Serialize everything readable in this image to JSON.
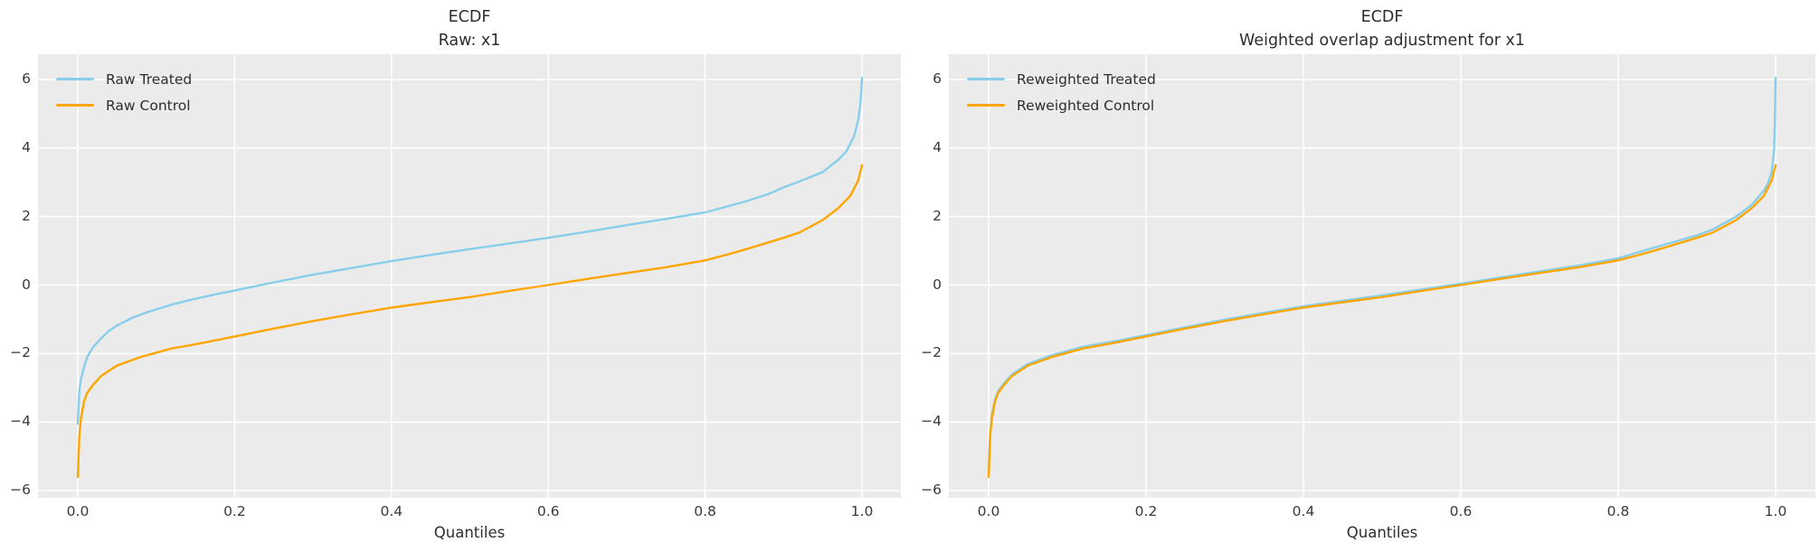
{
  "figure": {
    "background": "#ffffff",
    "axes_background": "#ebebeb",
    "grid_color": "#ffffff",
    "title_color": "#2e2e2e",
    "tick_color": "#3a3a3a",
    "treated_color": "#87ceeb",
    "control_color": "#ffa500"
  },
  "chart_data": [
    {
      "type": "line",
      "title_line1": "ECDF",
      "title_line2": "Raw: x1",
      "xlabel": "Quantiles",
      "grid": true,
      "legend_position": "upper left",
      "xlim": [
        -0.05,
        1.05
      ],
      "ylim": [
        -6.23,
        6.74
      ],
      "x_tick_values": [
        0.0,
        0.2,
        0.4,
        0.6,
        0.8,
        1.0
      ],
      "x_tick_labels": [
        "0.0",
        "0.2",
        "0.4",
        "0.6",
        "0.8",
        "1.0"
      ],
      "y_tick_values": [
        6,
        4,
        2,
        0,
        -2,
        -4,
        -6
      ],
      "y_tick_labels": [
        "6",
        "4",
        "2",
        "0",
        "−2",
        "−4",
        "−6"
      ],
      "legend": [
        {
          "label": "Raw Treated",
          "color": "#87ceeb"
        },
        {
          "label": "Raw Control",
          "color": "#ffa500"
        }
      ],
      "series": [
        {
          "name": "Raw Treated",
          "color": "#87ceeb",
          "points": [
            [
              0,
              -4.05
            ],
            [
              0.002,
              -3.1
            ],
            [
              0.004,
              -2.75
            ],
            [
              0.008,
              -2.4
            ],
            [
              0.012,
              -2.1
            ],
            [
              0.02,
              -1.8
            ],
            [
              0.03,
              -1.55
            ],
            [
              0.04,
              -1.33
            ],
            [
              0.05,
              -1.18
            ],
            [
              0.07,
              -0.95
            ],
            [
              0.09,
              -0.78
            ],
            [
              0.12,
              -0.57
            ],
            [
              0.15,
              -0.4
            ],
            [
              0.18,
              -0.25
            ],
            [
              0.2,
              -0.16
            ],
            [
              0.25,
              0.08
            ],
            [
              0.3,
              0.3
            ],
            [
              0.35,
              0.5
            ],
            [
              0.4,
              0.7
            ],
            [
              0.45,
              0.88
            ],
            [
              0.5,
              1.05
            ],
            [
              0.55,
              1.21
            ],
            [
              0.6,
              1.38
            ],
            [
              0.65,
              1.56
            ],
            [
              0.7,
              1.75
            ],
            [
              0.75,
              1.93
            ],
            [
              0.8,
              2.12
            ],
            [
              0.85,
              2.43
            ],
            [
              0.88,
              2.65
            ],
            [
              0.9,
              2.85
            ],
            [
              0.92,
              3.02
            ],
            [
              0.95,
              3.3
            ],
            [
              0.97,
              3.66
            ],
            [
              0.98,
              3.9
            ],
            [
              0.99,
              4.35
            ],
            [
              0.995,
              4.8
            ],
            [
              0.998,
              5.3
            ],
            [
              1,
              6.05
            ]
          ]
        },
        {
          "name": "Raw Control",
          "color": "#ffa500",
          "points": [
            [
              0,
              -5.6
            ],
            [
              0.002,
              -4.4
            ],
            [
              0.004,
              -3.9
            ],
            [
              0.008,
              -3.4
            ],
            [
              0.012,
              -3.15
            ],
            [
              0.02,
              -2.9
            ],
            [
              0.03,
              -2.65
            ],
            [
              0.05,
              -2.35
            ],
            [
              0.08,
              -2.1
            ],
            [
              0.12,
              -1.85
            ],
            [
              0.15,
              -1.73
            ],
            [
              0.17,
              -1.64
            ],
            [
              0.2,
              -1.5
            ],
            [
              0.25,
              -1.27
            ],
            [
              0.3,
              -1.05
            ],
            [
              0.35,
              -0.85
            ],
            [
              0.4,
              -0.66
            ],
            [
              0.45,
              -0.5
            ],
            [
              0.5,
              -0.35
            ],
            [
              0.55,
              -0.17
            ],
            [
              0.6,
              0.0
            ],
            [
              0.65,
              0.18
            ],
            [
              0.7,
              0.35
            ],
            [
              0.75,
              0.52
            ],
            [
              0.8,
              0.72
            ],
            [
              0.83,
              0.9
            ],
            [
              0.86,
              1.1
            ],
            [
              0.9,
              1.38
            ],
            [
              0.92,
              1.53
            ],
            [
              0.95,
              1.9
            ],
            [
              0.97,
              2.25
            ],
            [
              0.985,
              2.6
            ],
            [
              0.995,
              3.05
            ],
            [
              1,
              3.5
            ]
          ]
        }
      ]
    },
    {
      "type": "line",
      "title_line1": "ECDF",
      "title_line2": "Weighted overlap adjustment for x1",
      "xlabel": "Quantiles",
      "grid": true,
      "legend_position": "upper left",
      "xlim": [
        -0.05,
        1.05
      ],
      "ylim": [
        -6.23,
        6.74
      ],
      "x_tick_values": [
        0.0,
        0.2,
        0.4,
        0.6,
        0.8,
        1.0
      ],
      "x_tick_labels": [
        "0.0",
        "0.2",
        "0.4",
        "0.6",
        "0.8",
        "1.0"
      ],
      "y_tick_values": [
        6,
        4,
        2,
        0,
        -2,
        -4,
        -6
      ],
      "y_tick_labels": [
        "6",
        "4",
        "2",
        "0",
        "−2",
        "−4",
        "−6"
      ],
      "legend": [
        {
          "label": "Reweighted Treated",
          "color": "#87ceeb"
        },
        {
          "label": "Reweighted Control",
          "color": "#ffa500"
        }
      ],
      "series": [
        {
          "name": "Reweighted Treated",
          "color": "#87ceeb",
          "points": [
            [
              0,
              -5.45
            ],
            [
              0.002,
              -4.3
            ],
            [
              0.004,
              -3.8
            ],
            [
              0.008,
              -3.35
            ],
            [
              0.012,
              -3.1
            ],
            [
              0.02,
              -2.85
            ],
            [
              0.03,
              -2.6
            ],
            [
              0.05,
              -2.3
            ],
            [
              0.08,
              -2.05
            ],
            [
              0.12,
              -1.8
            ],
            [
              0.17,
              -1.6
            ],
            [
              0.2,
              -1.46
            ],
            [
              0.25,
              -1.23
            ],
            [
              0.3,
              -1.01
            ],
            [
              0.35,
              -0.81
            ],
            [
              0.4,
              -0.62
            ],
            [
              0.45,
              -0.46
            ],
            [
              0.5,
              -0.3
            ],
            [
              0.55,
              -0.13
            ],
            [
              0.6,
              0.04
            ],
            [
              0.65,
              0.22
            ],
            [
              0.7,
              0.4
            ],
            [
              0.75,
              0.57
            ],
            [
              0.8,
              0.78
            ],
            [
              0.85,
              1.12
            ],
            [
              0.9,
              1.45
            ],
            [
              0.92,
              1.62
            ],
            [
              0.95,
              2.0
            ],
            [
              0.97,
              2.35
            ],
            [
              0.985,
              2.75
            ],
            [
              0.99,
              2.95
            ],
            [
              0.995,
              3.3
            ],
            [
              0.998,
              3.9
            ],
            [
              0.999,
              4.6
            ],
            [
              1,
              6.05
            ]
          ]
        },
        {
          "name": "Reweighted Control",
          "color": "#ffa500",
          "points": [
            [
              0,
              -5.6
            ],
            [
              0.002,
              -4.4
            ],
            [
              0.004,
              -3.9
            ],
            [
              0.008,
              -3.4
            ],
            [
              0.012,
              -3.15
            ],
            [
              0.02,
              -2.9
            ],
            [
              0.03,
              -2.65
            ],
            [
              0.05,
              -2.35
            ],
            [
              0.08,
              -2.1
            ],
            [
              0.12,
              -1.85
            ],
            [
              0.15,
              -1.73
            ],
            [
              0.17,
              -1.64
            ],
            [
              0.2,
              -1.5
            ],
            [
              0.25,
              -1.27
            ],
            [
              0.3,
              -1.05
            ],
            [
              0.35,
              -0.85
            ],
            [
              0.4,
              -0.66
            ],
            [
              0.45,
              -0.5
            ],
            [
              0.5,
              -0.35
            ],
            [
              0.55,
              -0.17
            ],
            [
              0.6,
              0.0
            ],
            [
              0.65,
              0.18
            ],
            [
              0.7,
              0.35
            ],
            [
              0.75,
              0.52
            ],
            [
              0.8,
              0.72
            ],
            [
              0.83,
              0.9
            ],
            [
              0.86,
              1.1
            ],
            [
              0.9,
              1.38
            ],
            [
              0.92,
              1.53
            ],
            [
              0.95,
              1.9
            ],
            [
              0.97,
              2.25
            ],
            [
              0.985,
              2.6
            ],
            [
              0.995,
              3.05
            ],
            [
              1,
              3.5
            ]
          ]
        }
      ]
    }
  ]
}
